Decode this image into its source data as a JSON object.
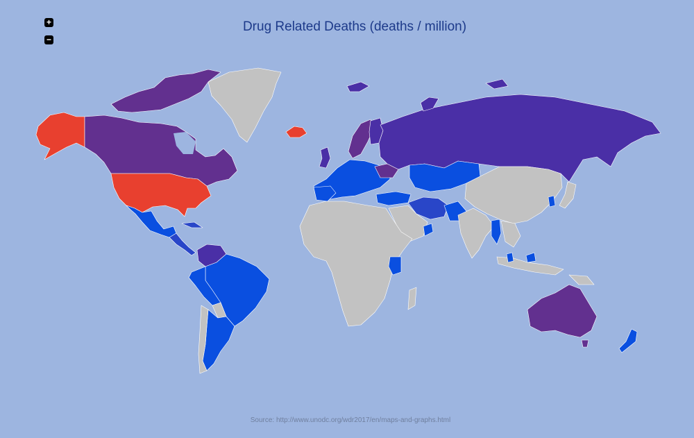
{
  "title": "Drug Related Deaths (deaths / million)",
  "source": "Source: http://www.unodc.org/wdr2017/en/maps-and-graphs.html",
  "controls": {
    "zoom_in": "+",
    "zoom_out": "−"
  },
  "colors": {
    "ocean": "#9db5e0",
    "no_data": "#c2c2c2",
    "very_high": "#e8402f",
    "high_purple": "#62308f",
    "mid_purple": "#4a2fa6",
    "mid_blue": "#2946c8",
    "low_blue": "#0a4fe0"
  }
}
